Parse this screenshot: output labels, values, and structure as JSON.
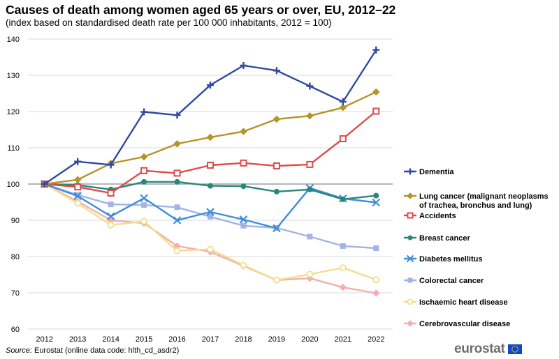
{
  "chart_data": {
    "type": "line",
    "title": "Causes of death among women aged 65 years or over, EU, 2012–22",
    "subtitle": "(index based on standardised death rate per 100 000 inhabitants, 2012 = 100)",
    "x": [
      "2012",
      "2013",
      "2014",
      "2015",
      "2016",
      "2017",
      "2018",
      "2019",
      "2020",
      "2021",
      "2022"
    ],
    "ylim": [
      60,
      140
    ],
    "yticks": [
      60,
      70,
      80,
      90,
      100,
      110,
      120,
      130,
      140
    ],
    "grid": true,
    "legend_position": "right",
    "series": [
      {
        "name": "Dementia",
        "color": "#2e4a9e",
        "marker": "plus",
        "values": [
          100,
          106.2,
          105.3,
          119.9,
          119.0,
          127.3,
          132.7,
          131.3,
          127.0,
          122.7,
          137.0
        ]
      },
      {
        "name": "Lung cancer (malignant neoplasms of trachea, bronchus and lung)",
        "color": "#b59428",
        "marker": "diamond",
        "values": [
          100,
          101.2,
          105.7,
          107.5,
          111.1,
          112.9,
          114.5,
          117.9,
          118.8,
          121.1,
          125.4
        ]
      },
      {
        "name": "Accidents",
        "color": "#df4b4b",
        "marker": "square-open",
        "values": [
          100,
          99.2,
          97.5,
          103.7,
          103.0,
          105.2,
          105.8,
          105.0,
          105.4,
          112.5,
          120.1
        ]
      },
      {
        "name": "Breast cancer",
        "color": "#268879",
        "marker": "circle",
        "values": [
          100,
          99.7,
          98.5,
          100.6,
          100.6,
          99.5,
          99.4,
          97.9,
          98.5,
          95.8,
          96.8
        ]
      },
      {
        "name": "Diabetes mellitus",
        "color": "#3f8ddb",
        "marker": "cross",
        "values": [
          100,
          96.7,
          91.1,
          96.1,
          90.0,
          92.3,
          90.2,
          87.8,
          98.9,
          96.0,
          94.9
        ]
      },
      {
        "name": "Colorectal cancer",
        "color": "#a3b3e4",
        "marker": "square",
        "values": [
          100,
          97.0,
          94.4,
          94.2,
          93.6,
          91.0,
          88.5,
          87.9,
          85.5,
          82.9,
          82.3
        ]
      },
      {
        "name": "Ischaemic heart disease",
        "color": "#f3dc8b",
        "marker": "circle-open",
        "values": [
          100,
          94.7,
          88.7,
          89.7,
          81.6,
          82.0,
          77.6,
          73.5,
          75.1,
          76.9,
          73.6
        ]
      },
      {
        "name": "Cerebrovascular disease",
        "color": "#f1afb1",
        "marker": "diamond",
        "values": [
          100,
          95.2,
          90.0,
          89.2,
          82.9,
          81.3,
          77.4,
          73.5,
          74.0,
          71.5,
          69.9
        ]
      }
    ]
  },
  "source": {
    "label": "Source:",
    "text": " Eurostat (online data code: hlth_cd_asdr2)"
  },
  "logo": {
    "text": "eurostat",
    "flag_color": "#0e47cb",
    "star_color": "#ffe000"
  }
}
